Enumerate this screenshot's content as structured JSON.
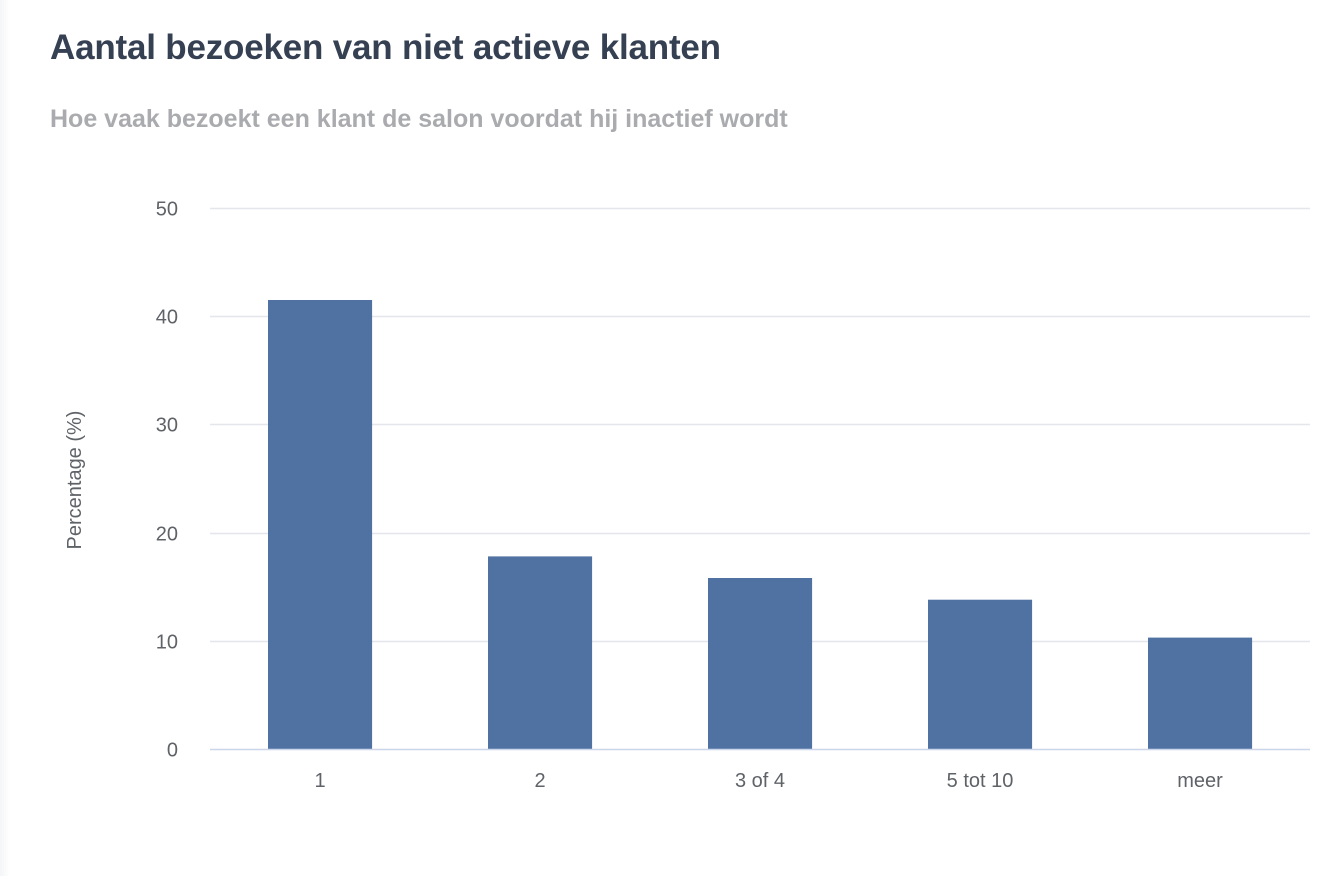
{
  "chart_data": {
    "type": "bar",
    "title": "Aantal bezoeken van niet actieve klanten",
    "subtitle": "Hoe vaak bezoekt een klant de salon voordat hij inactief wordt",
    "xlabel": "",
    "ylabel": "Percentage (%)",
    "categories": [
      "1",
      "2",
      "3 of 4",
      "5 tot 10",
      "meer"
    ],
    "values": [
      41.5,
      17.8,
      15.8,
      13.8,
      10.3
    ],
    "ylim": [
      0,
      50
    ],
    "yticks": [
      0,
      10,
      20,
      30,
      40,
      50
    ],
    "grid": true,
    "bar_color": "#4f72a2",
    "grid_color": "#e3e6ea",
    "axis_color": "#ccd6eb"
  }
}
